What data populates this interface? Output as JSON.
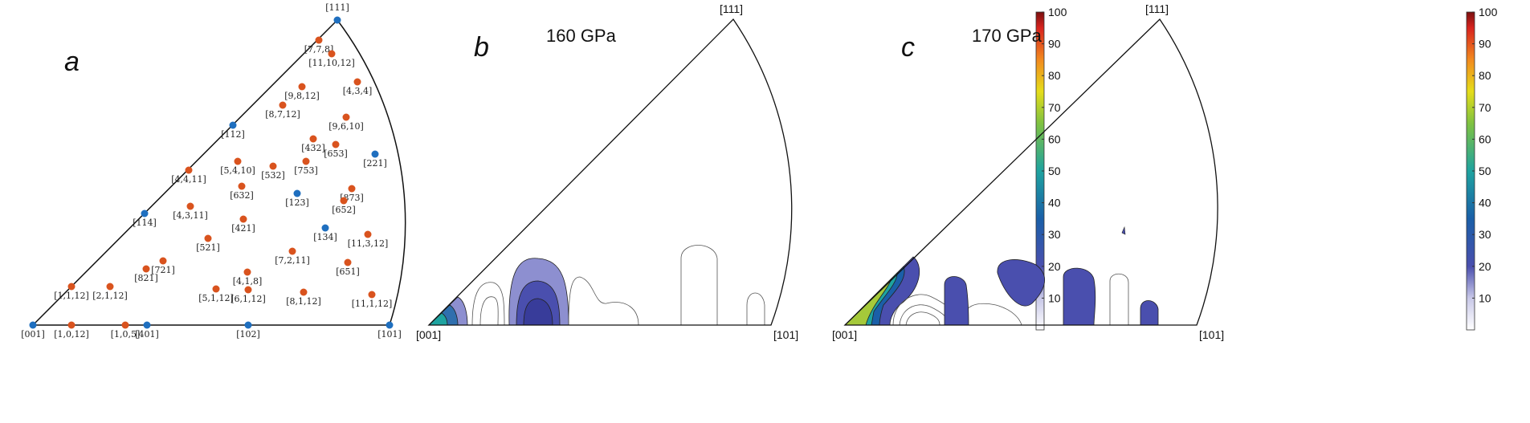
{
  "panels": {
    "a": "a",
    "b": "b",
    "c": "c"
  },
  "titles": {
    "b": "160 GPa",
    "c": "170 GPa"
  },
  "corners": {
    "top": "[111]",
    "left": "[001]",
    "right": "[101]"
  },
  "colorbar": {
    "ticks": [
      "10",
      "20",
      "30",
      "40",
      "50",
      "60",
      "70",
      "80",
      "90",
      "100"
    ],
    "range": [
      0,
      100
    ]
  },
  "colors": {
    "blue_points": "#1f6fbf",
    "orange_points": "#d9531e"
  },
  "points_blue": [
    "[111]",
    "[112]",
    "[114]",
    "[001]",
    "[401]",
    "[102]",
    "[123]",
    "[134]",
    "[221]",
    "[101]"
  ],
  "points_orange": [
    "[7,7,8]",
    "[11,10,12]",
    "[4,3,4]",
    "[9,8,12]",
    "[8,7,12]",
    "[9,6,10]",
    "[432]",
    "[653]",
    "[5,4,10]",
    "[532]",
    "[753]",
    "[4,4,11]",
    "[632]",
    "[873]",
    "[652]",
    "[4,3,11]",
    "[421]",
    "[521]",
    "[11,3,12]",
    "[7,2,11]",
    "[721]",
    "[821]",
    "[651]",
    "[4,1,8]",
    "[1,1,12]",
    "[2,1,12]",
    "[5,1,12]",
    "[6,1,12]",
    "[8,1,12]",
    "[11,1,12]",
    "[1,0,12]",
    "[1,0,5]"
  ]
}
